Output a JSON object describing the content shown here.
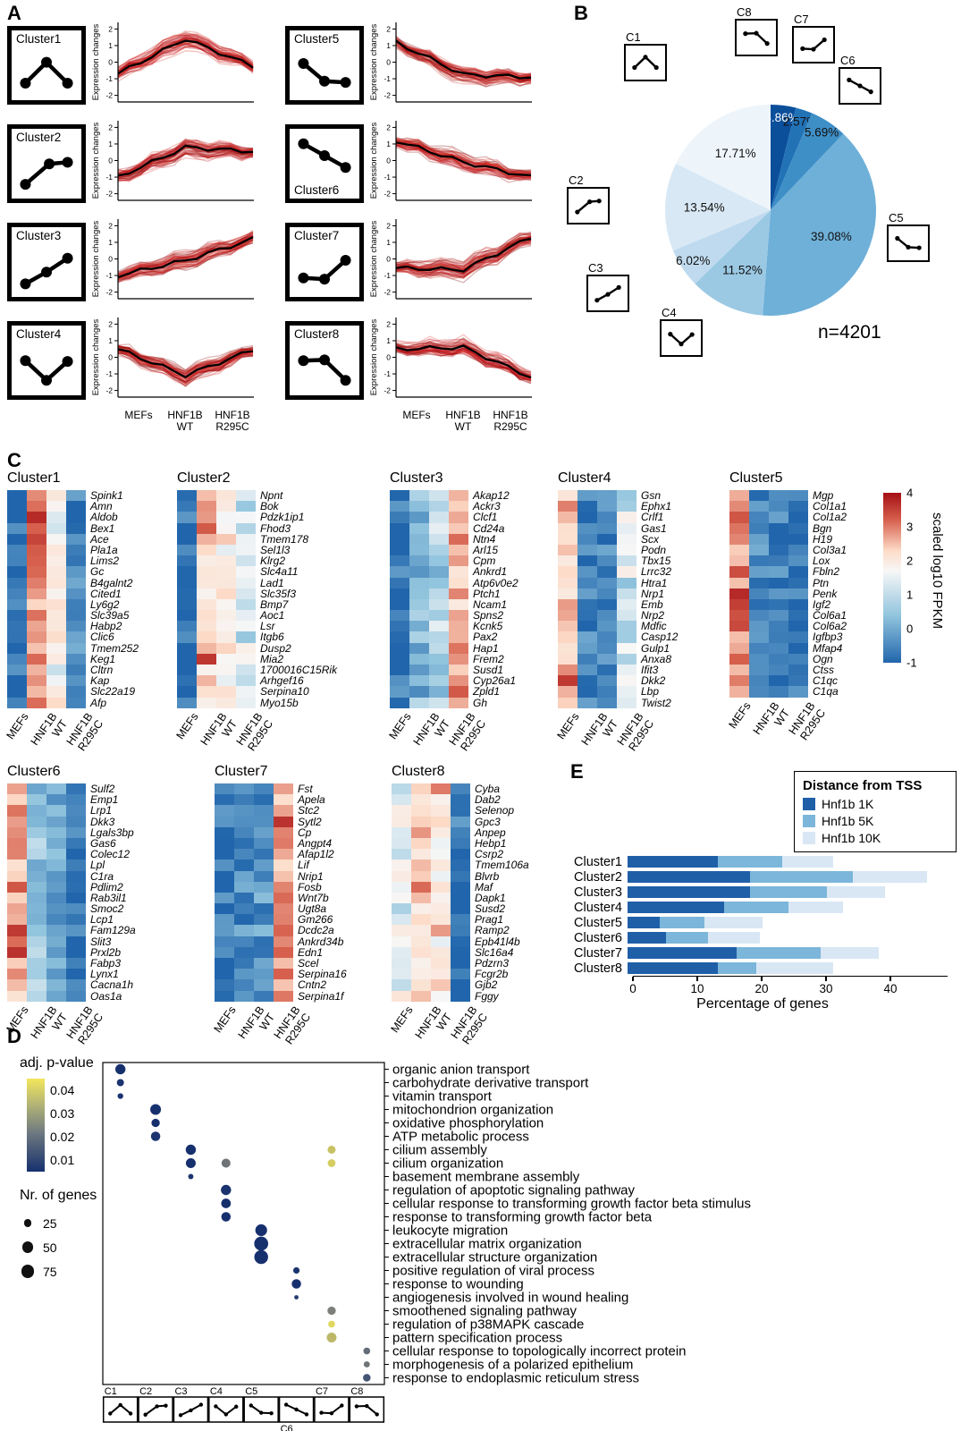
{
  "figure": {
    "panel_labels": {
      "A": "A",
      "B": "B",
      "C": "C",
      "D": "D",
      "E": "E"
    }
  },
  "chart_data": [
    {
      "type": "line",
      "panel": "A",
      "ylabel": "Expression changes",
      "yticks": [
        2,
        1,
        0,
        -1,
        -2
      ],
      "x_ticklabels": [
        [
          "MEFs"
        ],
        [
          "HNF1B",
          "WT"
        ],
        [
          "HNF1B",
          "R295C"
        ]
      ],
      "clusters": [
        {
          "name": "Cluster1",
          "label_pos": "top",
          "icon": [
            [
              0.12,
              0.75
            ],
            [
              0.5,
              0.22
            ],
            [
              0.88,
              0.75
            ]
          ],
          "profile": [
            -0.7,
            1.4,
            -0.25
          ]
        },
        {
          "name": "Cluster2",
          "label_pos": "top",
          "icon": [
            [
              0.12,
              0.82
            ],
            [
              0.55,
              0.3
            ],
            [
              0.88,
              0.26
            ]
          ],
          "profile": [
            -1.0,
            0.8,
            0.55
          ]
        },
        {
          "name": "Cluster3",
          "label_pos": "top",
          "icon": [
            [
              0.12,
              0.85
            ],
            [
              0.5,
              0.55
            ],
            [
              0.88,
              0.2
            ]
          ],
          "profile": [
            -1.0,
            -0.1,
            1.2
          ]
        },
        {
          "name": "Cluster4",
          "label_pos": "top",
          "icon": [
            [
              0.12,
              0.3
            ],
            [
              0.5,
              0.8
            ],
            [
              0.88,
              0.32
            ]
          ],
          "profile": [
            0.5,
            -1.1,
            0.45
          ]
        },
        {
          "name": "Cluster5",
          "label_pos": "top",
          "icon": [
            [
              0.12,
              0.25
            ],
            [
              0.5,
              0.7
            ],
            [
              0.88,
              0.73
            ]
          ],
          "profile": [
            1.2,
            -0.75,
            -0.9
          ]
        },
        {
          "name": "Cluster6",
          "label_pos": "bottom",
          "icon": [
            [
              0.12,
              0.2
            ],
            [
              0.5,
              0.5
            ],
            [
              0.88,
              0.8
            ]
          ],
          "profile": [
            1.2,
            -0.1,
            -1.0
          ]
        },
        {
          "name": "Cluster7",
          "label_pos": "top",
          "icon": [
            [
              0.12,
              0.7
            ],
            [
              0.5,
              0.73
            ],
            [
              0.88,
              0.25
            ]
          ],
          "profile": [
            -0.55,
            -0.65,
            1.3
          ]
        },
        {
          "name": "Cluster8",
          "label_pos": "top",
          "icon": [
            [
              0.12,
              0.3
            ],
            [
              0.5,
              0.28
            ],
            [
              0.88,
              0.8
            ]
          ],
          "profile": [
            0.5,
            0.6,
            -1.2
          ]
        }
      ]
    },
    {
      "type": "pie",
      "panel": "B",
      "annotation": "n=4201",
      "slices": [
        {
          "id": "C8",
          "pct": 3.86,
          "color": "#0b4f9b",
          "label_color": "#ffffff"
        },
        {
          "id": "C7",
          "pct": 2.57,
          "color": "#2272b6",
          "label_color": "#111111"
        },
        {
          "id": "C6",
          "pct": 5.69,
          "color": "#3f8fc7",
          "label_color": "#111111"
        },
        {
          "id": "C5",
          "pct": 39.08,
          "color": "#6fb0d8",
          "label_color": "#111111"
        },
        {
          "id": "C4",
          "pct": 11.52,
          "color": "#9bc9e4",
          "label_color": "#111111"
        },
        {
          "id": "C3",
          "pct": 6.02,
          "color": "#bfdaee",
          "label_color": "#111111"
        },
        {
          "id": "C2",
          "pct": 13.54,
          "color": "#d8e8f5",
          "label_color": "#111111"
        },
        {
          "id": "C1",
          "pct": 17.71,
          "color": "#edf5fb",
          "label_color": "#111111"
        }
      ]
    },
    {
      "type": "heatmap",
      "panel": "C",
      "columns": [
        [
          "MEFs"
        ],
        [
          "HNF1B",
          "WT"
        ],
        [
          "HNF1B",
          "R295C"
        ]
      ],
      "colorbar": {
        "label": "scaled log10 FPKM",
        "ticks": [
          4,
          3,
          2,
          1,
          0,
          -1
        ]
      },
      "clusters": [
        {
          "name": "Cluster1",
          "column_profile": [
            -0.75,
            2.6,
            1.5,
            -0.55
          ],
          "genes": [
            "Spink1",
            "Amn",
            "Aldob",
            "Bex1",
            "Ace",
            "Pla1a",
            "Lims2",
            "Gc",
            "B4galnt2",
            "Cited1",
            "Ly6g2",
            "Slc39a5",
            "Habp2",
            "Clic6",
            "Tmem252",
            "Keg1",
            "Cltrn",
            "Kap",
            "Slc22a19",
            "Afp"
          ]
        },
        {
          "name": "Cluster2",
          "column_profile": [
            -0.85,
            1.9,
            1.7,
            1.0
          ],
          "genes": [
            "Npnt",
            "Bok",
            "Pdzk1ip1",
            "Fhod3",
            "Tmem178",
            "Sel1l3",
            "Klrg2",
            "Slc4a11",
            "Lad1",
            "Slc35f3",
            "Bmp7",
            "Aoc1",
            "Lsr",
            "Itgb6",
            "Dusp2",
            "Mia2",
            "1700016C15Rik",
            "Arhgef16",
            "Serpina10",
            "Myo15b"
          ]
        },
        {
          "name": "Cluster3",
          "column_profile": [
            -0.85,
            0.2,
            0.6,
            2.2
          ],
          "genes": [
            "Akap12",
            "Ackr3",
            "Clcf1",
            "Cd24a",
            "Ntn4",
            "Arl15",
            "Cpm",
            "Ankrd1",
            "Atp6v0e2",
            "Ptch1",
            "Ncam1",
            "Spns2",
            "Kcnk5",
            "Pax2",
            "Hap1",
            "Frem2",
            "Susd1",
            "Cyp26a1",
            "Zpld1",
            "Gh"
          ]
        },
        {
          "name": "Cluster4",
          "column_profile": [
            2.2,
            -0.6,
            -0.5,
            0.9
          ],
          "genes": [
            "Gsn",
            "Ephx1",
            "Crlf1",
            "Gas1",
            "Scx",
            "Podn",
            "Tbx15",
            "Lrrc32",
            "Htra1",
            "Nrp1",
            "Emb",
            "Nrp2",
            "Mdfic",
            "Casp12",
            "Gulp1",
            "Anxa8",
            "Ifit3",
            "Dkk2",
            "Lbp",
            "Twist2"
          ]
        },
        {
          "name": "Cluster5",
          "column_profile": [
            2.8,
            -0.55,
            -0.7,
            -0.8
          ],
          "genes": [
            "Mgp",
            "Col1a1",
            "Col1a2",
            "Bgn",
            "H19",
            "Col3a1",
            "Lox",
            "Fbln2",
            "Ptn",
            "Penk",
            "Igf2",
            "Col6a1",
            "Col6a2",
            "Igfbp3",
            "Mfap4",
            "Ogn",
            "Ctss",
            "C1qc",
            "C1qa"
          ]
        },
        {
          "name": "Cluster6",
          "column_profile": [
            2.4,
            0.3,
            0,
            -0.8
          ],
          "genes": [
            "Sulf2",
            "Emp1",
            "Lrp1",
            "Dkk3",
            "Lgals3bp",
            "Gas6",
            "Colec12",
            "Lpl",
            "C1ra",
            "Pdlim2",
            "Rab3il1",
            "Smoc2",
            "Lcp1",
            "Fam129a",
            "Slit3",
            "Prxl2b",
            "Fabp3",
            "Lynx1",
            "Cacna1h",
            "Oas1a"
          ]
        },
        {
          "name": "Cluster7",
          "column_profile": [
            -0.7,
            -0.5,
            -0.35,
            2.4
          ],
          "genes": [
            "Fst",
            "Apela",
            "Stc2",
            "Sytl2",
            "Cp",
            "Angpt4",
            "Afap1l2",
            "Lif",
            "Nrip1",
            "Fosb",
            "Wnt7b",
            "Ugt8a",
            "Gm266",
            "Dcdc2a",
            "Ankrd34b",
            "Edn1",
            "Scel",
            "Serpina16",
            "Cntn2",
            "Serpina1f"
          ]
        },
        {
          "name": "Cluster8",
          "column_profile": [
            1.2,
            1.9,
            1.6,
            -0.8
          ],
          "genes": [
            "Cyba",
            "Dab2",
            "Selenop",
            "Gpc3",
            "Anpep",
            "Hebp1",
            "Csrp2",
            "Tmem106a",
            "Blvrb",
            "Maf",
            "Dapk1",
            "Susd2",
            "Prag1",
            "Ramp2",
            "Epb41l4b",
            "Slc16a4",
            "Pdzrn3",
            "Fcgr2b",
            "Gjb2",
            "Fggy"
          ]
        }
      ]
    },
    {
      "type": "scatter",
      "panel": "D",
      "clusters": [
        "C1",
        "C2",
        "C3",
        "C4",
        "C5",
        "C6",
        "C7",
        "C8"
      ],
      "terms": [
        "organic anion transport",
        "carbohydrate derivative transport",
        "vitamin transport",
        "mitochondrion organization",
        "oxidative phosphorylation",
        "ATP metabolic process",
        "cilium assembly",
        "cilium organization",
        "basement membrane assembly",
        "regulation of apoptotic signaling pathway",
        "cellular response to transforming growth factor beta stimulus",
        "response to transforming growth factor beta",
        "leukocyte migration",
        "extracellular matrix organization",
        "extracellular structure organization",
        "positive regulation of viral process",
        "response to wounding",
        "angiogenesis involved in wound healing",
        "smoothened signaling pathway",
        "regulation of p38MAPK cascade",
        "pattern specification process",
        "cellular response to topologically incorrect protein",
        "morphogenesis of a polarized epithelium",
        "response to endoplasmic reticulum stress"
      ],
      "points": [
        {
          "cluster": "C1",
          "term": "organic anion transport",
          "n": 45,
          "p": 0.005
        },
        {
          "cluster": "C1",
          "term": "carbohydrate derivative transport",
          "n": 22,
          "p": 0.006
        },
        {
          "cluster": "C1",
          "term": "vitamin transport",
          "n": 14,
          "p": 0.006
        },
        {
          "cluster": "C2",
          "term": "mitochondrion organization",
          "n": 50,
          "p": 0.005
        },
        {
          "cluster": "C2",
          "term": "oxidative phosphorylation",
          "n": 30,
          "p": 0.005
        },
        {
          "cluster": "C2",
          "term": "ATP metabolic process",
          "n": 38,
          "p": 0.006
        },
        {
          "cluster": "C3",
          "term": "cilium assembly",
          "n": 45,
          "p": 0.004
        },
        {
          "cluster": "C3",
          "term": "cilium organization",
          "n": 42,
          "p": 0.005
        },
        {
          "cluster": "C3",
          "term": "basement membrane assembly",
          "n": 12,
          "p": 0.006
        },
        {
          "cluster": "C4",
          "term": "cilium organization",
          "n": 35,
          "p": 0.022
        },
        {
          "cluster": "C4",
          "term": "regulation of apoptotic signaling pathway",
          "n": 45,
          "p": 0.006
        },
        {
          "cluster": "C4",
          "term": "cellular response to transforming growth factor beta stimulus",
          "n": 40,
          "p": 0.005
        },
        {
          "cluster": "C4",
          "term": "response to transforming growth factor beta",
          "n": 38,
          "p": 0.005
        },
        {
          "cluster": "C5",
          "term": "leukocyte migration",
          "n": 60,
          "p": 0.004
        },
        {
          "cluster": "C5",
          "term": "extracellular matrix organization",
          "n": 85,
          "p": 0.003
        },
        {
          "cluster": "C5",
          "term": "extracellular structure organization",
          "n": 82,
          "p": 0.003
        },
        {
          "cluster": "C6",
          "term": "positive regulation of viral process",
          "n": 18,
          "p": 0.006
        },
        {
          "cluster": "C6",
          "term": "response to wounding",
          "n": 38,
          "p": 0.005
        },
        {
          "cluster": "C6",
          "term": "angiogenesis involved in wound healing",
          "n": 8,
          "p": 0.008
        },
        {
          "cluster": "C7",
          "term": "cilium assembly",
          "n": 28,
          "p": 0.038
        },
        {
          "cluster": "C7",
          "term": "cilium organization",
          "n": 26,
          "p": 0.04
        },
        {
          "cluster": "C7",
          "term": "smoothened signaling pathway",
          "n": 30,
          "p": 0.025
        },
        {
          "cluster": "C7",
          "term": "regulation of p38MAPK cascade",
          "n": 20,
          "p": 0.042
        },
        {
          "cluster": "C7",
          "term": "pattern specification process",
          "n": 42,
          "p": 0.036
        },
        {
          "cluster": "C8",
          "term": "cellular response to topologically incorrect protein",
          "n": 20,
          "p": 0.02
        },
        {
          "cluster": "C8",
          "term": "morphogenesis of a polarized epithelium",
          "n": 16,
          "p": 0.022
        },
        {
          "cluster": "C8",
          "term": "response to endoplasmic reticulum stress",
          "n": 25,
          "p": 0.014
        }
      ],
      "legend": {
        "p_title": "adj. p-value",
        "p_ticks": [
          0.04,
          0.03,
          0.02,
          0.01
        ],
        "n_title": "Nr. of genes",
        "n_sizes": [
          25,
          50,
          75
        ]
      }
    },
    {
      "type": "bar",
      "panel": "E",
      "legend_title": "Distance from TSS",
      "xlabel": "Percentage of genes",
      "xticks": [
        0,
        10,
        20,
        30,
        40
      ],
      "categories": [
        "Cluster1",
        "Cluster2",
        "Cluster3",
        "Cluster4",
        "Cluster5",
        "Cluster6",
        "Cluster7",
        "Cluster8"
      ],
      "series": [
        {
          "name": "Hnf1b 1K",
          "color": "#1f5fa8",
          "values": [
            14,
            19,
            19,
            15,
            5,
            6,
            17,
            14
          ]
        },
        {
          "name": "Hnf1b 5K",
          "color": "#7cb6da",
          "values": [
            10,
            16,
            12,
            10,
            7,
            6.5,
            13,
            6
          ]
        },
        {
          "name": "Hnf1b 10K",
          "color": "#d9e7f5",
          "values": [
            8,
            11.5,
            9,
            8.5,
            9,
            8,
            9,
            12
          ]
        }
      ]
    }
  ]
}
